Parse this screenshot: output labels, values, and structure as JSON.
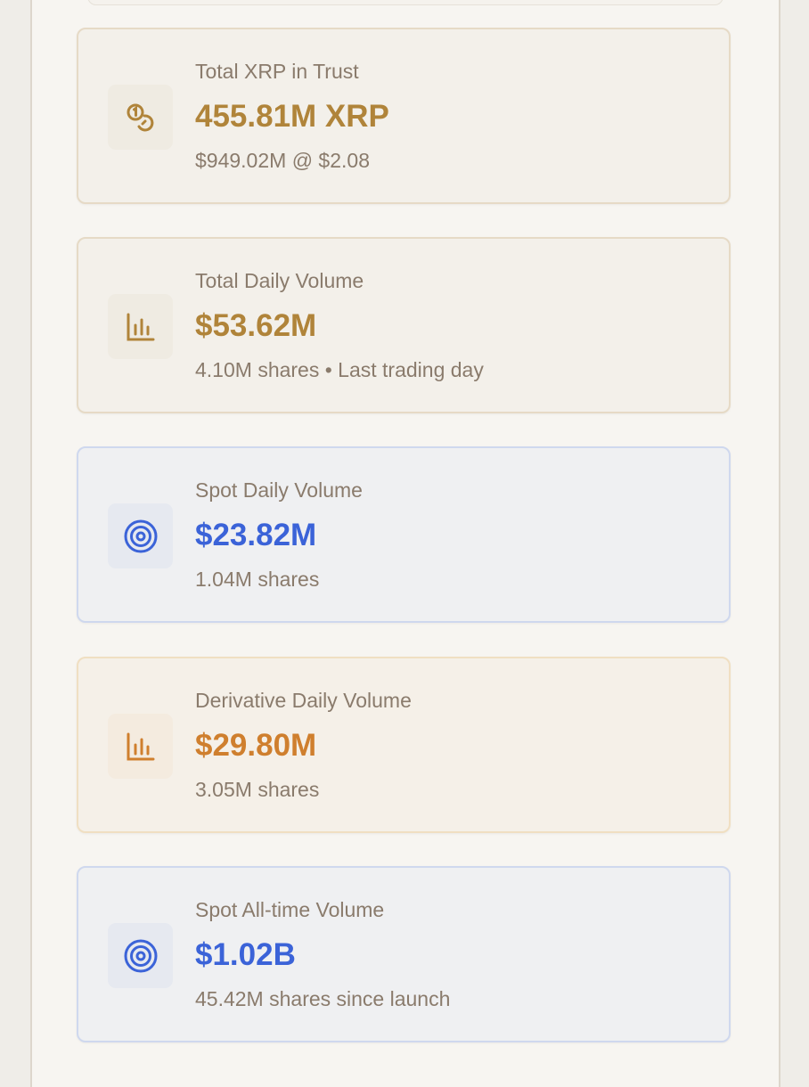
{
  "colors": {
    "gold": "#b0843a",
    "blue": "#3b63d8",
    "orange": "#cf7f2e",
    "muted": "#8a7b6c"
  },
  "cards": [
    {
      "label": "Total XRP in Trust",
      "value": "455.81M XRP",
      "sub": "$949.02M @ $2.08",
      "icon": "coins-icon",
      "theme": "gold"
    },
    {
      "label": "Total Daily Volume",
      "value": "$53.62M",
      "sub": "4.10M shares • Last trading day",
      "icon": "bar-chart-icon",
      "theme": "gold"
    },
    {
      "label": "Spot Daily Volume",
      "value": "$23.82M",
      "sub": "1.04M shares",
      "icon": "target-icon",
      "theme": "blue"
    },
    {
      "label": "Derivative Daily Volume",
      "value": "$29.80M",
      "sub": "3.05M shares",
      "icon": "bar-chart-icon",
      "theme": "orange"
    },
    {
      "label": "Spot All-time Volume",
      "value": "$1.02B",
      "sub": "45.42M shares since launch",
      "icon": "target-icon",
      "theme": "blue"
    }
  ]
}
